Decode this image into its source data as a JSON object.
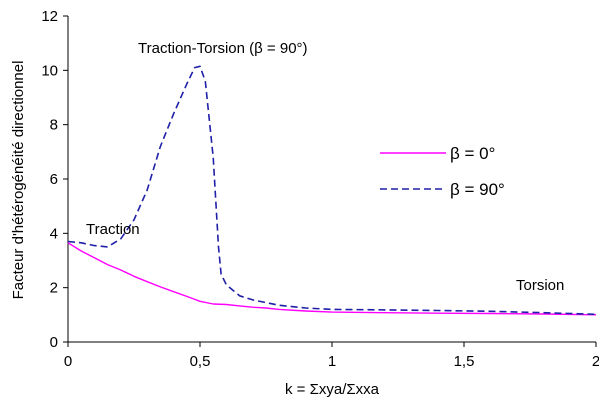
{
  "chart_data": {
    "type": "line",
    "title": "",
    "xlabel": "k = Σxyа/Σxxa",
    "ylabel": "Facteur d'hétérogénéité directionnel",
    "xlim": [
      0,
      2
    ],
    "ylim": [
      0,
      12
    ],
    "x_ticks": [
      0,
      0.5,
      1,
      1.5,
      2
    ],
    "x_tick_labels": [
      "0",
      "0,5",
      "1",
      "1,5",
      "2"
    ],
    "y_ticks": [
      0,
      2,
      4,
      6,
      8,
      10,
      12
    ],
    "y_tick_labels": [
      "0",
      "2",
      "4",
      "6",
      "8",
      "10",
      "12"
    ],
    "grid": false,
    "legend_position": "right",
    "annotations": [
      {
        "text": "Traction-Torsion (β = 90°)"
      },
      {
        "text": "Traction"
      },
      {
        "text": "Torsion"
      }
    ],
    "series": [
      {
        "name": "β = 0°",
        "color": "#ff00ff",
        "style": "solid",
        "x": [
          0,
          0.05,
          0.1,
          0.15,
          0.2,
          0.25,
          0.3,
          0.35,
          0.4,
          0.45,
          0.5,
          0.55,
          0.6,
          0.65,
          0.7,
          0.75,
          0.8,
          0.9,
          1.0,
          1.2,
          1.4,
          1.6,
          1.8,
          2.0
        ],
        "y": [
          3.65,
          3.35,
          3.1,
          2.85,
          2.65,
          2.42,
          2.22,
          2.03,
          1.85,
          1.68,
          1.5,
          1.4,
          1.38,
          1.33,
          1.28,
          1.25,
          1.2,
          1.14,
          1.1,
          1.08,
          1.06,
          1.05,
          1.03,
          1.0
        ]
      },
      {
        "name": "β = 90°",
        "color": "#1f1fa8",
        "style": "dashed",
        "x": [
          0,
          0.05,
          0.1,
          0.15,
          0.2,
          0.25,
          0.3,
          0.35,
          0.4,
          0.45,
          0.48,
          0.5,
          0.52,
          0.55,
          0.57,
          0.58,
          0.6,
          0.65,
          0.7,
          0.8,
          0.9,
          1.0,
          1.2,
          1.4,
          1.6,
          1.8,
          2.0
        ],
        "y": [
          3.7,
          3.65,
          3.55,
          3.5,
          3.8,
          4.5,
          5.6,
          7.2,
          8.4,
          9.5,
          10.1,
          10.15,
          9.6,
          6.8,
          3.5,
          2.5,
          2.1,
          1.7,
          1.55,
          1.35,
          1.25,
          1.2,
          1.18,
          1.16,
          1.13,
          1.08,
          1.02
        ]
      }
    ]
  }
}
